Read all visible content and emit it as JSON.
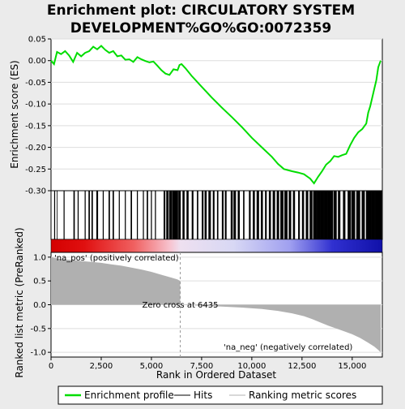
{
  "chart_data": {
    "type": "line",
    "title_lines": [
      "Enrichment plot: CIRCULATORY SYSTEM",
      "DEVELOPMENT%GO%GO:0072359"
    ],
    "xlabel": "Rank in Ordered Dataset",
    "ylabel_top": "Enrichment score (ES)",
    "ylabel_bottom": "Ranked list metric (PreRanked)",
    "x_range": [
      0,
      16500
    ],
    "es_ylim": [
      -0.3,
      0.05
    ],
    "es_ticks": [
      {
        "v": 0.05,
        "label": "0.05"
      },
      {
        "v": 0.0,
        "label": "0.00"
      },
      {
        "v": -0.05,
        "label": "-0.05"
      },
      {
        "v": -0.1,
        "label": "-0.10"
      },
      {
        "v": -0.15,
        "label": "-0.15"
      },
      {
        "v": -0.2,
        "label": "-0.20"
      },
      {
        "v": -0.25,
        "label": "-0.25"
      },
      {
        "v": -0.3,
        "label": "-0.30"
      }
    ],
    "metric_ylim": [
      -1.1,
      1.1
    ],
    "metric_ticks": [
      {
        "v": 1.0,
        "label": "1.0"
      },
      {
        "v": 0.5,
        "label": "0.5"
      },
      {
        "v": 0.0,
        "label": "0.0"
      },
      {
        "v": -0.5,
        "label": "-0.5"
      },
      {
        "v": -1.0,
        "label": "-1.0"
      }
    ],
    "x_ticks": [
      {
        "v": 0,
        "label": "0"
      },
      {
        "v": 2500,
        "label": "2,500"
      },
      {
        "v": 5000,
        "label": "5,000"
      },
      {
        "v": 7500,
        "label": "7,500"
      },
      {
        "v": 10000,
        "label": "10,000"
      },
      {
        "v": 12500,
        "label": "12,500"
      },
      {
        "v": 15000,
        "label": "15,000"
      }
    ],
    "series": [
      {
        "name": "Enrichment profile",
        "color": "#00dd00",
        "points": [
          [
            0,
            0.0
          ],
          [
            150,
            -0.008
          ],
          [
            300,
            0.02
          ],
          [
            500,
            0.015
          ],
          [
            700,
            0.022
          ],
          [
            900,
            0.012
          ],
          [
            1100,
            -0.003
          ],
          [
            1300,
            0.018
          ],
          [
            1500,
            0.01
          ],
          [
            1700,
            0.018
          ],
          [
            1900,
            0.022
          ],
          [
            2100,
            0.032
          ],
          [
            2300,
            0.026
          ],
          [
            2500,
            0.034
          ],
          [
            2700,
            0.025
          ],
          [
            2900,
            0.018
          ],
          [
            3100,
            0.022
          ],
          [
            3300,
            0.01
          ],
          [
            3500,
            0.012
          ],
          [
            3700,
            0.002
          ],
          [
            3900,
            0.003
          ],
          [
            4100,
            -0.003
          ],
          [
            4300,
            0.008
          ],
          [
            4500,
            0.003
          ],
          [
            4700,
            -0.001
          ],
          [
            4900,
            -0.004
          ],
          [
            5100,
            -0.002
          ],
          [
            5300,
            -0.012
          ],
          [
            5500,
            -0.022
          ],
          [
            5700,
            -0.03
          ],
          [
            5900,
            -0.033
          ],
          [
            6100,
            -0.02
          ],
          [
            6300,
            -0.022
          ],
          [
            6400,
            -0.01
          ],
          [
            6500,
            -0.008
          ],
          [
            6700,
            -0.018
          ],
          [
            7000,
            -0.035
          ],
          [
            7500,
            -0.06
          ],
          [
            8000,
            -0.085
          ],
          [
            8500,
            -0.108
          ],
          [
            9000,
            -0.13
          ],
          [
            9500,
            -0.153
          ],
          [
            10000,
            -0.178
          ],
          [
            10500,
            -0.2
          ],
          [
            11000,
            -0.222
          ],
          [
            11300,
            -0.238
          ],
          [
            11600,
            -0.25
          ],
          [
            12000,
            -0.255
          ],
          [
            12300,
            -0.258
          ],
          [
            12600,
            -0.262
          ],
          [
            12900,
            -0.272
          ],
          [
            13100,
            -0.283
          ],
          [
            13300,
            -0.268
          ],
          [
            13500,
            -0.255
          ],
          [
            13700,
            -0.24
          ],
          [
            13900,
            -0.232
          ],
          [
            14100,
            -0.22
          ],
          [
            14300,
            -0.222
          ],
          [
            14500,
            -0.218
          ],
          [
            14700,
            -0.215
          ],
          [
            14900,
            -0.195
          ],
          [
            15100,
            -0.178
          ],
          [
            15300,
            -0.165
          ],
          [
            15500,
            -0.158
          ],
          [
            15700,
            -0.145
          ],
          [
            15800,
            -0.12
          ],
          [
            15900,
            -0.105
          ],
          [
            16000,
            -0.085
          ],
          [
            16100,
            -0.065
          ],
          [
            16200,
            -0.045
          ],
          [
            16300,
            -0.015
          ],
          [
            16420,
            0.0
          ]
        ]
      },
      {
        "name": "Hits",
        "color": "#000000"
      },
      {
        "name": "Ranking metric scores",
        "color": "#b0b0b0"
      }
    ],
    "hit_clusters": [
      [
        180,
        2
      ],
      [
        300,
        1
      ],
      [
        650,
        2
      ],
      [
        1150,
        3
      ],
      [
        1350,
        2
      ],
      [
        1700,
        2
      ],
      [
        1900,
        3
      ],
      [
        2050,
        3
      ],
      [
        2300,
        4
      ],
      [
        2600,
        2
      ],
      [
        2900,
        3
      ],
      [
        3100,
        3
      ],
      [
        3400,
        2
      ],
      [
        3700,
        2
      ],
      [
        4000,
        3
      ],
      [
        4300,
        2
      ],
      [
        4600,
        2
      ],
      [
        4800,
        3
      ],
      [
        5000,
        2
      ],
      [
        5200,
        2
      ],
      [
        5650,
        4
      ],
      [
        5800,
        6
      ],
      [
        5950,
        6
      ],
      [
        6100,
        8
      ],
      [
        6250,
        8
      ],
      [
        6400,
        6
      ],
      [
        6600,
        5
      ],
      [
        6800,
        5
      ],
      [
        7050,
        4
      ],
      [
        7300,
        3
      ],
      [
        7550,
        4
      ],
      [
        7700,
        5
      ],
      [
        7900,
        6
      ],
      [
        8100,
        4
      ],
      [
        8300,
        3
      ],
      [
        8550,
        4
      ],
      [
        8700,
        4
      ],
      [
        9000,
        5
      ],
      [
        9150,
        6
      ],
      [
        9350,
        5
      ],
      [
        9600,
        3
      ],
      [
        9900,
        4
      ],
      [
        10100,
        5
      ],
      [
        10300,
        6
      ],
      [
        10500,
        5
      ],
      [
        10700,
        4
      ],
      [
        10900,
        5
      ],
      [
        11100,
        6
      ],
      [
        11300,
        6
      ],
      [
        11500,
        8
      ],
      [
        11700,
        8
      ],
      [
        11900,
        6
      ],
      [
        12100,
        5
      ],
      [
        12350,
        4
      ],
      [
        12550,
        5
      ],
      [
        12750,
        6
      ],
      [
        12950,
        7
      ],
      [
        13150,
        10
      ],
      [
        13350,
        12
      ],
      [
        13550,
        12
      ],
      [
        13750,
        12
      ],
      [
        13950,
        10
      ],
      [
        14150,
        8
      ],
      [
        14350,
        6
      ],
      [
        14600,
        6
      ],
      [
        14850,
        8
      ],
      [
        15050,
        10
      ],
      [
        15300,
        10
      ],
      [
        15550,
        8
      ],
      [
        15800,
        12
      ],
      [
        16000,
        12
      ],
      [
        16200,
        12
      ],
      [
        16380,
        10
      ]
    ],
    "metric_points": [
      [
        0,
        1.0
      ],
      [
        200,
        0.98
      ],
      [
        500,
        0.96
      ],
      [
        1000,
        0.94
      ],
      [
        1500,
        0.92
      ],
      [
        2000,
        0.9
      ],
      [
        2500,
        0.88
      ],
      [
        3000,
        0.85
      ],
      [
        3500,
        0.82
      ],
      [
        4000,
        0.78
      ],
      [
        4500,
        0.74
      ],
      [
        5000,
        0.69
      ],
      [
        5500,
        0.63
      ],
      [
        6000,
        0.57
      ],
      [
        6300,
        0.53
      ],
      [
        6435,
        0.5
      ],
      [
        6436,
        0.0
      ],
      [
        7500,
        -0.02
      ],
      [
        8500,
        -0.04
      ],
      [
        9500,
        -0.06
      ],
      [
        10500,
        -0.09
      ],
      [
        11300,
        -0.13
      ],
      [
        12000,
        -0.18
      ],
      [
        12600,
        -0.24
      ],
      [
        13000,
        -0.3
      ],
      [
        13400,
        -0.37
      ],
      [
        13800,
        -0.44
      ],
      [
        14200,
        -0.5
      ],
      [
        14600,
        -0.56
      ],
      [
        15000,
        -0.62
      ],
      [
        15400,
        -0.7
      ],
      [
        15800,
        -0.8
      ],
      [
        16100,
        -0.88
      ],
      [
        16300,
        -0.95
      ],
      [
        16420,
        -1.0
      ]
    ],
    "zero_cross": {
      "rank": 6435,
      "label": "Zero cross at 6435"
    },
    "pos_label": "'na_pos' (positively correlated)",
    "neg_label": "'na_neg' (negatively correlated)",
    "pos_label_color": "#cc0000",
    "neg_label_color": "#0000cc",
    "legend": [
      {
        "name": "Enrichment profile",
        "color": "#00dd00"
      },
      {
        "name": "Hits",
        "color": "#000000"
      },
      {
        "name": "Ranking metric scores",
        "color": "#b0b0b0"
      }
    ]
  }
}
